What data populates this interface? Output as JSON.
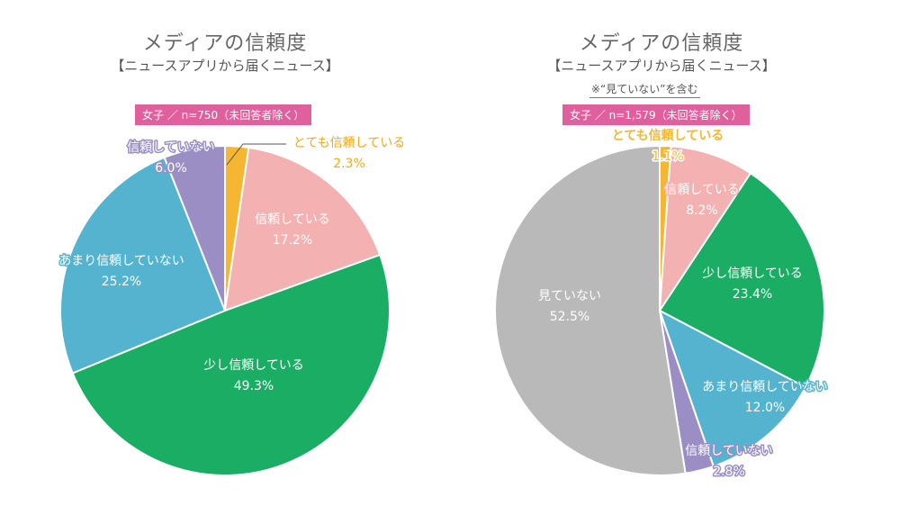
{
  "charts": [
    {
      "title": "メディアの信頼度",
      "subtitle": "【ニュースアプリから届くニュース】",
      "note": "",
      "sample": "女子 ／ n=750（未回答者除く）"
    },
    {
      "title": "メディアの信頼度",
      "subtitle": "【ニュースアプリから届くニュース】",
      "note": "※“見ていない”を含む",
      "sample": "女子 ／ n=1,579（未回答者除く）"
    }
  ],
  "chart_data": [
    {
      "type": "pie",
      "title": "メディアの信頼度",
      "subtitle": "【ニュースアプリから届くニュース】",
      "slices": [
        {
          "label": "とても信頼している",
          "value": 2.3,
          "value_label": "2.3%",
          "color": "#f5b731"
        },
        {
          "label": "信頼している",
          "value": 17.2,
          "value_label": "17.2%",
          "color": "#f4b1b1"
        },
        {
          "label": "少し信頼している",
          "value": 49.3,
          "value_label": "49.3%",
          "color": "#1aad64"
        },
        {
          "label": "あまり信頼していない",
          "value": 25.2,
          "value_label": "25.2%",
          "color": "#54b4cf"
        },
        {
          "label": "信頼していない",
          "value": 6.0,
          "value_label": "6.0%",
          "color": "#9b8ec4"
        }
      ]
    },
    {
      "type": "pie",
      "title": "メディアの信頼度",
      "subtitle": "【ニュースアプリから届くニュース】",
      "slices": [
        {
          "label": "とても信頼している",
          "value": 1.1,
          "value_label": "1.1%",
          "color": "#f5b731"
        },
        {
          "label": "信頼している",
          "value": 8.2,
          "value_label": "8.2%",
          "color": "#f4b1b1"
        },
        {
          "label": "少し信頼している",
          "value": 23.4,
          "value_label": "23.4%",
          "color": "#1aad64"
        },
        {
          "label": "あまり信頼していない",
          "value": 12.0,
          "value_label": "12.0%",
          "color": "#54b4cf"
        },
        {
          "label": "信頼していない",
          "value": 2.8,
          "value_label": "2.8%",
          "color": "#9b8ec4"
        },
        {
          "label": "見ていない",
          "value": 52.5,
          "value_label": "52.5%",
          "color": "#b9b9b9"
        }
      ]
    }
  ]
}
